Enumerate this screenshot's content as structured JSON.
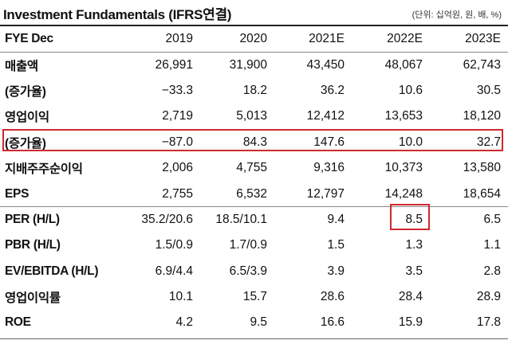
{
  "title": "Investment Fundamentals (IFRS연결)",
  "unit_note": "(단위: 십억원, 원, 배, %)",
  "header": {
    "label": "FYE Dec",
    "years": [
      "2019",
      "2020",
      "2021E",
      "2022E",
      "2023E"
    ]
  },
  "rows": [
    {
      "label": "매출액",
      "values": [
        "26,991",
        "31,900",
        "43,450",
        "48,067",
        "62,743"
      ]
    },
    {
      "label": "(증가율)",
      "values": [
        "−33.3",
        "18.2",
        "36.2",
        "10.6",
        "30.5"
      ]
    },
    {
      "label": "영업이익",
      "values": [
        "2,719",
        "5,013",
        "12,412",
        "13,653",
        "18,120"
      ]
    },
    {
      "label": "(증가율)",
      "values": [
        "−87.0",
        "84.3",
        "147.6",
        "10.0",
        "32.7"
      ],
      "highlight": true
    },
    {
      "label": "지배주주순이익",
      "values": [
        "2,006",
        "4,755",
        "9,316",
        "10,373",
        "13,580"
      ]
    },
    {
      "label": "EPS",
      "values": [
        "2,755",
        "6,532",
        "12,797",
        "14,248",
        "18,654"
      ]
    },
    {
      "label": "PER (H/L)",
      "values": [
        "35.2/20.6",
        "18.5/10.1",
        "9.4",
        "8.5",
        "6.5"
      ],
      "highlight_col": 3
    },
    {
      "label": "PBR (H/L)",
      "values": [
        "1.5/0.9",
        "1.7/0.9",
        "1.5",
        "1.3",
        "1.1"
      ]
    },
    {
      "label": "EV/EBITDA (H/L)",
      "values": [
        "6.9/4.4",
        "6.5/3.9",
        "3.9",
        "3.5",
        "2.8"
      ]
    },
    {
      "label": "영업이익률",
      "values": [
        "10.1",
        "15.7",
        "28.6",
        "28.4",
        "28.9"
      ]
    },
    {
      "label": "ROE",
      "values": [
        "4.2",
        "9.5",
        "16.6",
        "15.9",
        "17.8"
      ]
    }
  ],
  "highlight_color": "#d0282e"
}
